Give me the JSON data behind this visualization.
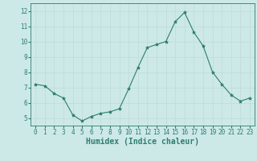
{
  "x": [
    0,
    1,
    2,
    3,
    4,
    5,
    6,
    7,
    8,
    9,
    10,
    11,
    12,
    13,
    14,
    15,
    16,
    17,
    18,
    19,
    20,
    21,
    22,
    23
  ],
  "y": [
    7.2,
    7.1,
    6.6,
    6.3,
    5.2,
    4.8,
    5.1,
    5.3,
    5.4,
    5.6,
    6.9,
    8.3,
    9.6,
    9.8,
    10.0,
    11.3,
    11.9,
    10.6,
    9.7,
    8.0,
    7.2,
    6.5,
    6.1,
    6.3
  ],
  "line_color": "#2e7d6e",
  "marker": "*",
  "marker_size": 3,
  "bg_color": "#cce9e7",
  "grid_color": "#c0dbd8",
  "xlabel": "Humidex (Indice chaleur)",
  "ylim": [
    4.5,
    12.5
  ],
  "xlim": [
    -0.5,
    23.5
  ],
  "yticks": [
    5,
    6,
    7,
    8,
    9,
    10,
    11,
    12
  ],
  "xticks": [
    0,
    1,
    2,
    3,
    4,
    5,
    6,
    7,
    8,
    9,
    10,
    11,
    12,
    13,
    14,
    15,
    16,
    17,
    18,
    19,
    20,
    21,
    22,
    23
  ],
  "tick_color": "#2e7d6e",
  "label_color": "#2e7d6e",
  "spine_color": "#2e7d6e",
  "tick_fontsize": 5.5,
  "xlabel_fontsize": 7.0
}
